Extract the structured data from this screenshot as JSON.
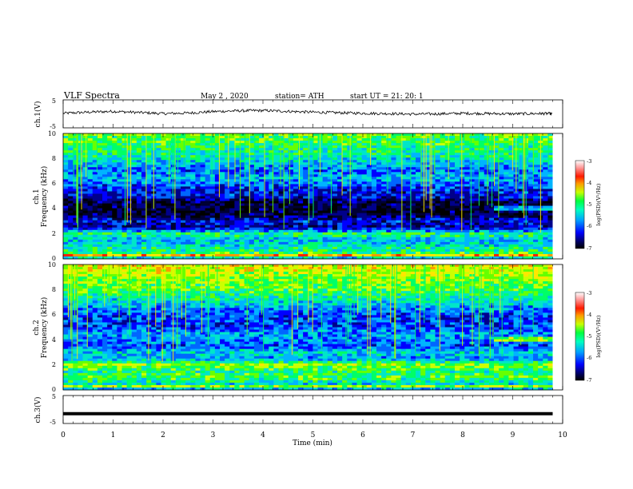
{
  "header": {
    "title": "VLF  Spectra",
    "date": "May 2  , 2020",
    "station": "station= ATH",
    "start": "start  UT  =    21: 20: 1"
  },
  "colors": {
    "palette": [
      "#000000",
      "#000033",
      "#00008b",
      "#0000ff",
      "#0066ff",
      "#00b4ff",
      "#00e6c8",
      "#00ff66",
      "#66ff00",
      "#ccff00",
      "#ffe600",
      "#ff9900",
      "#ff2200",
      "#ff7777",
      "#ffdddd",
      "#ffffff"
    ]
  },
  "chart_data": [
    {
      "type": "line",
      "panel": "ch1-waveform",
      "ylabel": "ch.1(V)",
      "ylim": [
        -5,
        5
      ],
      "yticks": [
        "5",
        "-5"
      ],
      "xlim": [
        0,
        10
      ],
      "x": [
        0,
        0.5,
        1,
        1.5,
        2,
        2.5,
        3,
        3.5,
        4,
        4.5,
        5,
        5.5,
        6,
        6.5,
        7,
        7.5,
        8,
        8.5,
        9,
        9.5,
        9.8
      ],
      "y": [
        0.2,
        0.6,
        0.9,
        0.5,
        0.1,
        0.3,
        0.8,
        1.1,
        1.2,
        0.9,
        0.6,
        0.4,
        0.2,
        0.1,
        -0.1,
        0.0,
        0.2,
        0.1,
        0.0,
        0.1,
        0.1
      ]
    },
    {
      "type": "heatmap",
      "panel": "ch1-spectrogram",
      "ylabel_lines": [
        "ch.1",
        "Frequency  (kHz)"
      ],
      "xlim": [
        0,
        10
      ],
      "ylim": [
        0,
        10
      ],
      "yticks": [
        "0",
        "2",
        "4",
        "6",
        "8",
        "10"
      ],
      "colorbar": {
        "range": [
          -7,
          -3
        ],
        "ticks": [
          "-3",
          "-4",
          "-5",
          "-6",
          "-7"
        ],
        "label": "log(PSD)(V²/Hz)"
      },
      "band_levels_by_khz": [
        {
          "f": 0.0,
          "level": 0
        },
        {
          "f": 0.2,
          "level": 12
        },
        {
          "f": 0.5,
          "level": 7
        },
        {
          "f": 1.0,
          "level": 6
        },
        {
          "f": 1.5,
          "level": 5
        },
        {
          "f": 2.0,
          "level": 7
        },
        {
          "f": 2.5,
          "level": 2
        },
        {
          "f": 3.0,
          "level": 3
        },
        {
          "f": 3.5,
          "level": 1
        },
        {
          "f": 4.0,
          "level": 1
        },
        {
          "f": 4.5,
          "level": 1
        },
        {
          "f": 5.0,
          "level": 3
        },
        {
          "f": 5.5,
          "level": 3
        },
        {
          "f": 6.0,
          "level": 4
        },
        {
          "f": 6.5,
          "level": 5
        },
        {
          "f": 7.0,
          "level": 4
        },
        {
          "f": 7.5,
          "level": 5
        },
        {
          "f": 8.0,
          "level": 6
        },
        {
          "f": 9.0,
          "level": 7
        },
        {
          "f": 10.0,
          "level": 8
        }
      ]
    },
    {
      "type": "heatmap",
      "panel": "ch2-spectrogram",
      "ylabel_lines": [
        "ch.2",
        "Frequency  (kHz)"
      ],
      "xlim": [
        0,
        10
      ],
      "ylim": [
        0,
        10
      ],
      "yticks": [
        "0",
        "2",
        "4",
        "6",
        "8",
        "10"
      ],
      "colorbar": {
        "range": [
          -7,
          -3
        ],
        "ticks": [
          "-3",
          "-4",
          "-5",
          "-6",
          "-7"
        ],
        "label": "log(PSD)(V²/Hz)"
      },
      "band_levels_by_khz": [
        {
          "f": 0.0,
          "level": 1
        },
        {
          "f": 0.2,
          "level": 9
        },
        {
          "f": 0.5,
          "level": 5
        },
        {
          "f": 1.0,
          "level": 7
        },
        {
          "f": 1.5,
          "level": 6
        },
        {
          "f": 2.0,
          "level": 8
        },
        {
          "f": 2.5,
          "level": 4
        },
        {
          "f": 3.0,
          "level": 5
        },
        {
          "f": 3.5,
          "level": 3
        },
        {
          "f": 4.0,
          "level": 4
        },
        {
          "f": 4.5,
          "level": 4
        },
        {
          "f": 5.0,
          "level": 3
        },
        {
          "f": 5.5,
          "level": 3
        },
        {
          "f": 6.0,
          "level": 3
        },
        {
          "f": 6.5,
          "level": 4
        },
        {
          "f": 7.0,
          "level": 5
        },
        {
          "f": 7.5,
          "level": 6
        },
        {
          "f": 8.0,
          "level": 7
        },
        {
          "f": 9.0,
          "level": 8
        },
        {
          "f": 10.0,
          "level": 9
        }
      ]
    },
    {
      "type": "line",
      "panel": "ch3-waveform",
      "ylabel": "ch.3(V)",
      "ylim": [
        -5,
        5
      ],
      "yticks": [
        "5",
        "-5"
      ],
      "xlim": [
        0,
        10
      ],
      "x": [
        0,
        9.8
      ],
      "y": [
        -1.5,
        -1.5
      ]
    }
  ],
  "time_axis": {
    "label": "Time  (min)",
    "ticks": [
      "0",
      "1",
      "2",
      "3",
      "4",
      "5",
      "6",
      "7",
      "8",
      "9",
      "10"
    ]
  }
}
